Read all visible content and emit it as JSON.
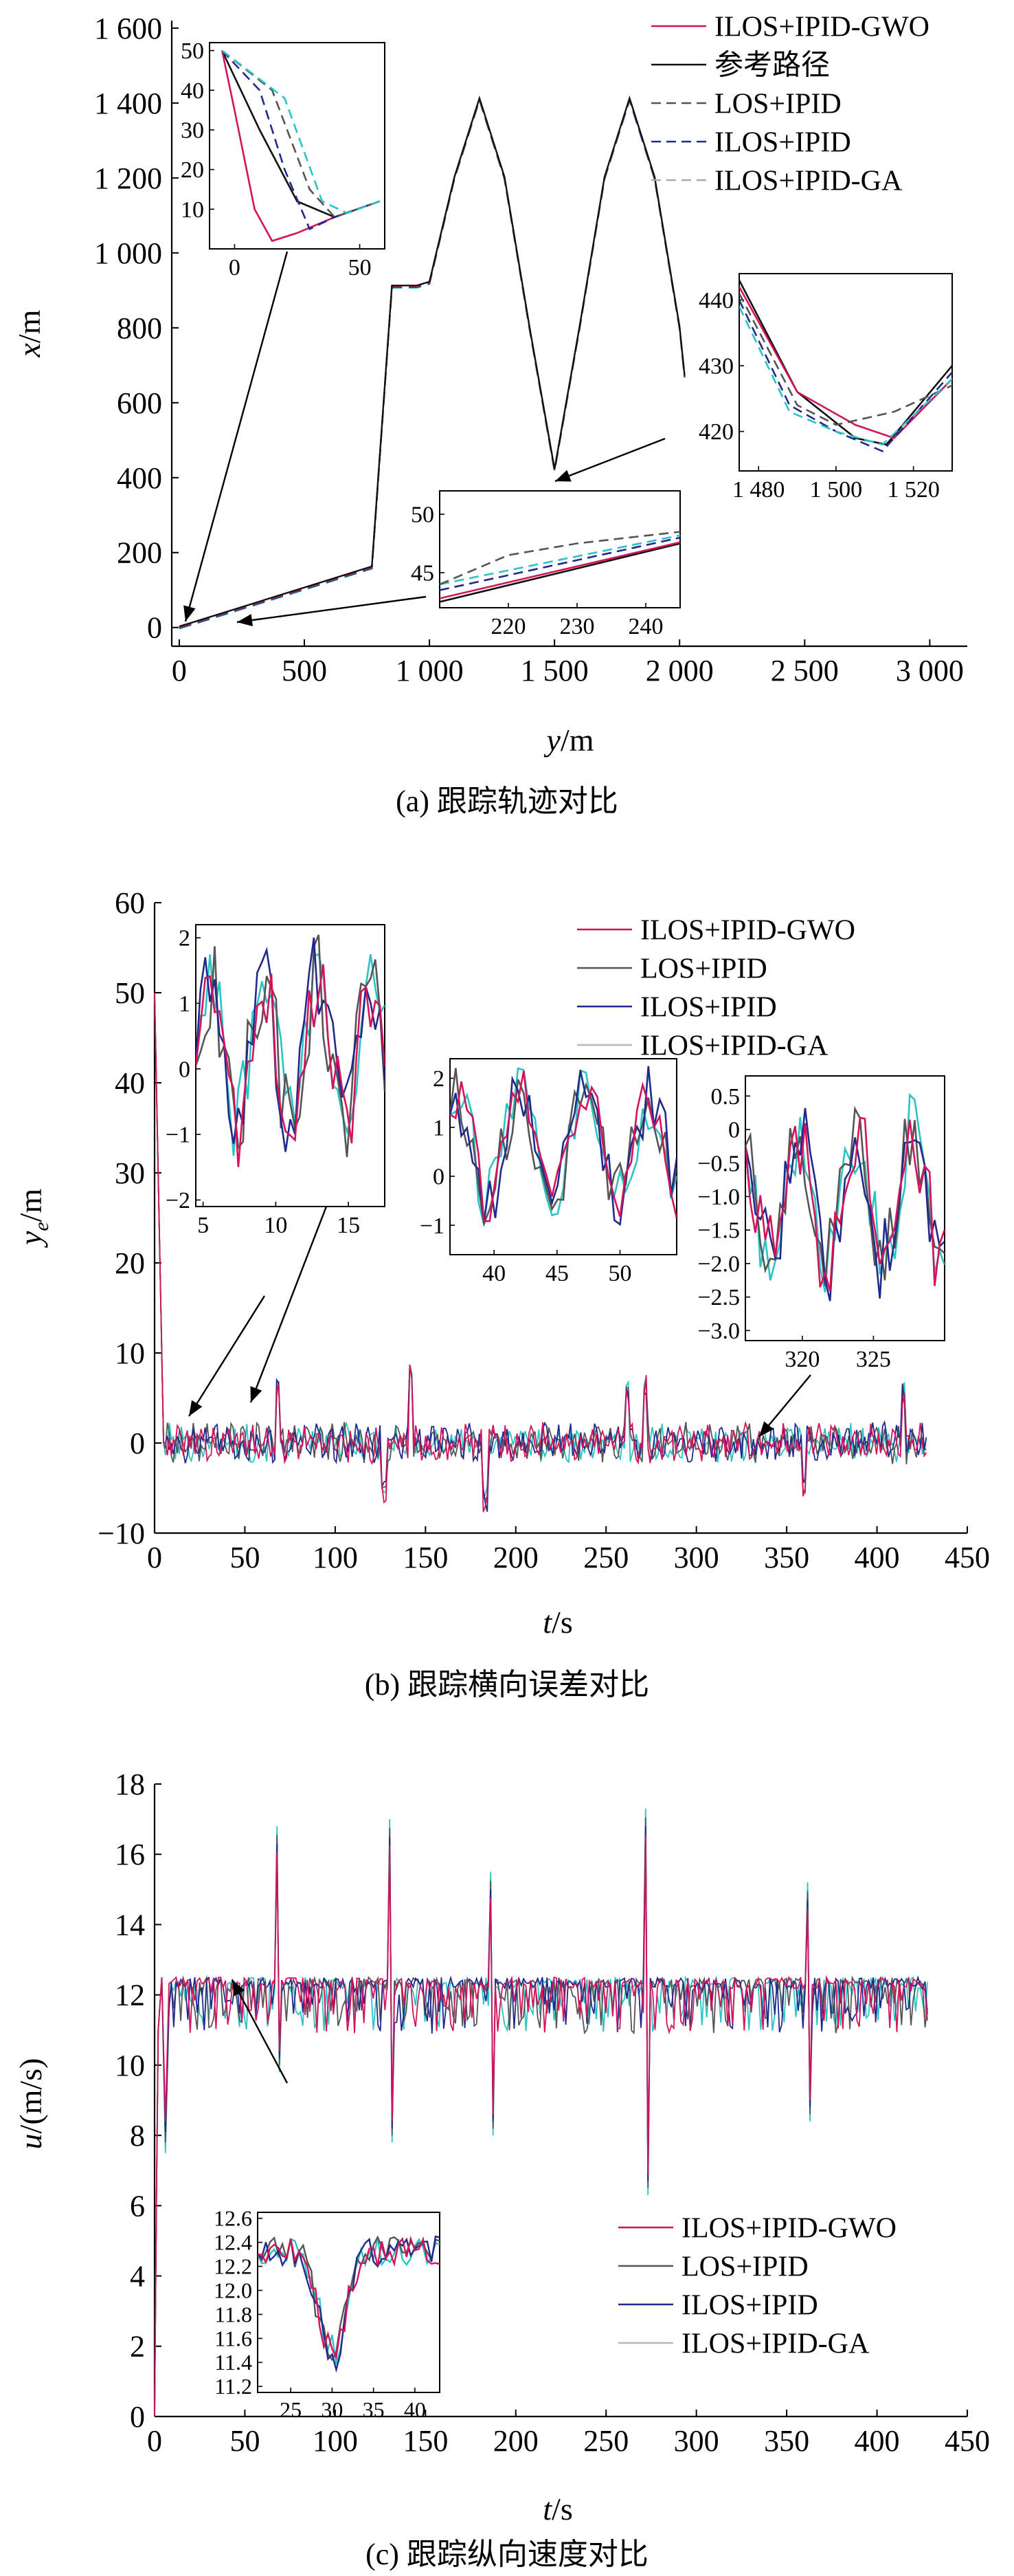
{
  "colors": {
    "ilos_ipid_gwo": "#d4145a",
    "reference": "#111111",
    "los_ipid": "#555555",
    "ilos_ipid": "#1f2a8c",
    "ilos_ipid_ga": "#2bc4c4",
    "ilos_ipid_ga_light": "#b8b8b8"
  },
  "chart_data": [
    {
      "id": "a",
      "type": "line",
      "caption": "(a) 跟踪轨迹对比",
      "xlabel_italic": "y",
      "xlabel_unit": "/m",
      "ylabel_italic": "x",
      "ylabel_unit": "/m",
      "xlim": [
        -30,
        3150
      ],
      "ylim": [
        -50,
        1620
      ],
      "xticks": [
        0,
        500,
        1000,
        1500,
        2000,
        2500,
        3000
      ],
      "xtick_labels": [
        "0",
        "500",
        "1 000",
        "1 500",
        "2 000",
        "2 500",
        "3 000"
      ],
      "yticks": [
        0,
        200,
        400,
        600,
        800,
        1000,
        1200,
        1400,
        1600
      ],
      "ytick_labels": [
        "0",
        "200",
        "400",
        "600",
        "800",
        "1 000",
        "1 200",
        "1 400",
        "1 600"
      ],
      "legend": [
        "ILOS+IPID-GWO",
        "参考路径",
        "LOS+IPID",
        "ILOS+IPID",
        "ILOS+IPID-GA"
      ],
      "reference_path": {
        "x": [
          0,
          50,
          770,
          850,
          950,
          1000,
          1100,
          1200,
          1300,
          1400,
          1500,
          1600,
          1700,
          1800,
          1900,
          2000,
          2020
        ],
        "y": [
          0,
          10,
          160,
          910,
          910,
          920,
          1200,
          1410,
          1200,
          800,
          420,
          800,
          1200,
          1410,
          1200,
          800,
          670
        ]
      },
      "insets": [
        {
          "xlim": [
            -10,
            60
          ],
          "ylim": [
            0,
            52
          ],
          "xticks": [
            0,
            50
          ],
          "xtick_labels": [
            "0",
            "50"
          ],
          "yticks": [
            10,
            20,
            30,
            40,
            50
          ],
          "ytick_labels": [
            "10",
            "20",
            "30",
            "40",
            "50"
          ],
          "series": [
            {
              "key": "reference",
              "x": [
                -5,
                10,
                25,
                40,
                58
              ],
              "y": [
                50,
                30,
                12,
                8,
                12
              ]
            },
            {
              "key": "ilos_ipid_gwo",
              "x": [
                -5,
                0,
                8,
                15,
                25,
                40,
                58
              ],
              "y": [
                50,
                35,
                10,
                2,
                4,
                8,
                12
              ]
            },
            {
              "key": "ilos_ipid",
              "x": [
                -5,
                10,
                20,
                30,
                40,
                58
              ],
              "y": [
                50,
                40,
                20,
                5,
                8,
                12
              ]
            },
            {
              "key": "los_ipid",
              "x": [
                -5,
                15,
                30,
                40,
                58
              ],
              "y": [
                50,
                40,
                15,
                8,
                12
              ]
            },
            {
              "key": "ilos_ipid_ga",
              "x": [
                -5,
                20,
                35,
                45,
                58
              ],
              "y": [
                50,
                38,
                12,
                9,
                12
              ]
            }
          ]
        },
        {
          "xlim": [
            1475,
            1530
          ],
          "ylim": [
            414,
            444
          ],
          "xticks": [
            1480,
            1500,
            1520
          ],
          "xtick_labels": [
            "1 480",
            "1 500",
            "1 520"
          ],
          "yticks": [
            420,
            430,
            440
          ],
          "ytick_labels": [
            "420",
            "430",
            "440"
          ],
          "series": [
            {
              "key": "reference",
              "x": [
                1475,
                1490,
                1505,
                1513,
                1530
              ],
              "y": [
                443,
                426,
                419,
                418,
                430
              ]
            },
            {
              "key": "ilos_ipid_gwo",
              "x": [
                1475,
                1490,
                1505,
                1515,
                1530
              ],
              "y": [
                442,
                426,
                421,
                419,
                428
              ]
            },
            {
              "key": "ilos_ipid",
              "x": [
                1475,
                1488,
                1500,
                1512,
                1530
              ],
              "y": [
                440,
                424,
                420,
                417,
                429
              ]
            },
            {
              "key": "los_ipid",
              "x": [
                1475,
                1490,
                1500,
                1515,
                1530
              ],
              "y": [
                441,
                424,
                421,
                423,
                427
              ]
            },
            {
              "key": "ilos_ipid_ga",
              "x": [
                1475,
                1488,
                1500,
                1512,
                1530
              ],
              "y": [
                439,
                423,
                420,
                418,
                428
              ]
            }
          ]
        },
        {
          "xlim": [
            210,
            245
          ],
          "ylim": [
            42,
            52
          ],
          "xticks": [
            220,
            230,
            240
          ],
          "xtick_labels": [
            "220",
            "230",
            "240"
          ],
          "yticks": [
            45,
            50
          ],
          "ytick_labels": [
            "45",
            "50"
          ],
          "series": [
            {
              "key": "reference",
              "x": [
                210,
                245
              ],
              "y": [
                42.5,
                47.5
              ]
            },
            {
              "key": "ilos_ipid_gwo",
              "x": [
                210,
                245
              ],
              "y": [
                42.8,
                47.6
              ]
            },
            {
              "key": "ilos_ipid",
              "x": [
                210,
                245
              ],
              "y": [
                43.5,
                48
              ]
            },
            {
              "key": "ilos_ipid_ga",
              "x": [
                210,
                245
              ],
              "y": [
                44,
                48.2
              ]
            },
            {
              "key": "los_ipid",
              "x": [
                210,
                220,
                230,
                245
              ],
              "y": [
                44,
                46.5,
                47.5,
                48.5
              ]
            }
          ]
        }
      ]
    },
    {
      "id": "b",
      "type": "line",
      "caption": "(b) 跟踪横向误差对比",
      "xlabel_italic": "t",
      "xlabel_unit": "/s",
      "ylabel_italic": "y",
      "ylabel_sub": "e",
      "ylabel_unit": "/m",
      "xlim": [
        0,
        450
      ],
      "ylim": [
        -10,
        60
      ],
      "xticks": [
        0,
        50,
        100,
        150,
        200,
        250,
        300,
        350,
        400,
        450
      ],
      "yticks": [
        -10,
        0,
        10,
        20,
        30,
        40,
        50,
        60
      ],
      "legend": [
        "ILOS+IPID-GWO",
        "LOS+IPID",
        "ILOS+IPID",
        "ILOS+IPID-GA"
      ],
      "t_end": 428,
      "initial_error": 50,
      "insets": [
        {
          "xlim": [
            4.5,
            17.5
          ],
          "ylim": [
            -2.1,
            2.2
          ],
          "xticks": [
            5,
            10,
            15
          ],
          "yticks": [
            -2,
            -1,
            0,
            1,
            2
          ]
        },
        {
          "xlim": [
            36.5,
            54.5
          ],
          "ylim": [
            -1.6,
            2.4
          ],
          "xticks": [
            40,
            45,
            50
          ],
          "yticks": [
            -1,
            0,
            1,
            2
          ]
        },
        {
          "xlim": [
            316,
            330
          ],
          "ylim": [
            -3.15,
            0.8
          ],
          "xticks": [
            320,
            325
          ],
          "yticks": [
            -3.0,
            -2.5,
            -2.0,
            -1.5,
            -1.0,
            -0.5,
            0,
            0.5
          ],
          "ytick_labels": [
            "−3.0",
            "−2.5",
            "−2.0",
            "−1.5",
            "−1.0",
            "−0.5",
            "0",
            "0.5"
          ]
        }
      ]
    },
    {
      "id": "c",
      "type": "line",
      "caption": "(c) 跟踪纵向速度对比",
      "xlabel_italic": "t",
      "xlabel_unit": "/s",
      "ylabel_italic": "u",
      "ylabel_unit": "/(m/s)",
      "xlim": [
        0,
        450
      ],
      "ylim": [
        0,
        18
      ],
      "xticks": [
        0,
        50,
        100,
        150,
        200,
        250,
        300,
        350,
        400,
        450
      ],
      "yticks": [
        0,
        2,
        4,
        6,
        8,
        10,
        12,
        14,
        16,
        18
      ],
      "legend": [
        "ILOS+IPID-GWO",
        "LOS+IPID",
        "ILOS+IPID",
        "ILOS+IPID-GA"
      ],
      "nominal_speed": 12.5,
      "t_end": 428,
      "insets": [
        {
          "xlim": [
            21,
            43
          ],
          "ylim": [
            11.15,
            12.65
          ],
          "xticks": [
            25,
            30,
            35,
            40
          ],
          "yticks": [
            11.2,
            11.4,
            11.6,
            11.8,
            12.0,
            12.2,
            12.4,
            12.6
          ],
          "ytick_labels": [
            "11.2",
            "11.4",
            "11.6",
            "11.8",
            "12.0",
            "12.2",
            "12.4",
            "12.6"
          ]
        }
      ]
    }
  ]
}
